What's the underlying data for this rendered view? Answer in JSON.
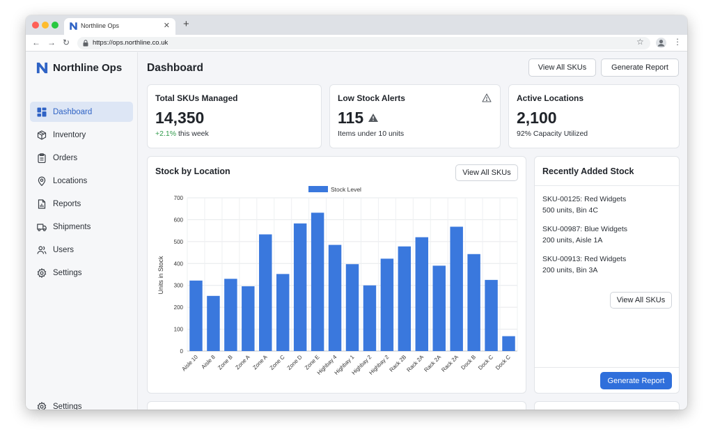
{
  "browser": {
    "tab_title": "Northline Ops",
    "url": "https://ops.northline.co.uk"
  },
  "sidebar": {
    "brand": "Northline Ops",
    "items": [
      {
        "label": "Dashboard",
        "icon": "dashboard-icon",
        "active": true
      },
      {
        "label": "Inventory",
        "icon": "box-icon"
      },
      {
        "label": "Orders",
        "icon": "clipboard-icon"
      },
      {
        "label": "Locations",
        "icon": "map-pin-icon"
      },
      {
        "label": "Reports",
        "icon": "report-icon"
      },
      {
        "label": "Shipments",
        "icon": "truck-icon"
      },
      {
        "label": "Users",
        "icon": "users-icon"
      },
      {
        "label": "Settings",
        "icon": "gear-icon"
      }
    ],
    "bottom_item": {
      "label": "Settings",
      "icon": "gear-icon"
    }
  },
  "header": {
    "title": "Dashboard",
    "view_all_label": "View All SKUs",
    "generate_label": "Generate Report"
  },
  "stats": [
    {
      "label": "Total SKUs Managed",
      "value": "14,350",
      "sub_pos": "+2.1%",
      "sub": " this week"
    },
    {
      "label": "Low Stock Alerts",
      "value": "115",
      "sub": "Items under 10 units"
    },
    {
      "label": "Active Locations",
      "value": "2,100",
      "sub": "92% Capacity Utilized"
    }
  ],
  "stock_card": {
    "title": "Stock by Location",
    "button_label": "View All SKUs"
  },
  "recent": {
    "title": "Recently Added Stock",
    "items": [
      {
        "line1": "SKU-00125: Red Widgets",
        "line2": "500 units, Bin 4C"
      },
      {
        "line1": "SKU-00987: Blue Widgets",
        "line2": "200 units, Aisle 1A"
      },
      {
        "line1": "SKU-00913: Red Widgets",
        "line2": "200 units, Bin 3A"
      }
    ],
    "view_all_label": "View All SKUs",
    "generate_label": "Generate Report"
  },
  "colors": {
    "accent": "#2f6fdb",
    "bar": "#3a78dd",
    "active_nav_bg": "#dde6f5",
    "positive": "#2f9a4a"
  },
  "chart_data": {
    "type": "bar",
    "title": "",
    "xlabel": "",
    "ylabel": "Units in Stock",
    "legend_position": "top",
    "grid": true,
    "ylim": [
      0,
      700
    ],
    "yticks": [
      0,
      100,
      200,
      300,
      400,
      500,
      600,
      700
    ],
    "categories": [
      "Aisle 10",
      "Aisle 8",
      "Zone B",
      "Zone A",
      "Zone A",
      "Zone C",
      "Zone D",
      "Zone E",
      "Highbay 4",
      "Highbay 1",
      "Highbay 2",
      "Highbay 2",
      "Rack 2B",
      "Rack 2A",
      "Rack 2A",
      "Rack 2A",
      "Dock B",
      "Dock C",
      "Dock C"
    ],
    "series": [
      {
        "name": "Stock Level",
        "values": [
          322,
          252,
          330,
          296,
          533,
          352,
          583,
          632,
          485,
          397,
          300,
          422,
          478,
          520,
          390,
          568,
          443,
          325,
          68
        ]
      }
    ]
  }
}
